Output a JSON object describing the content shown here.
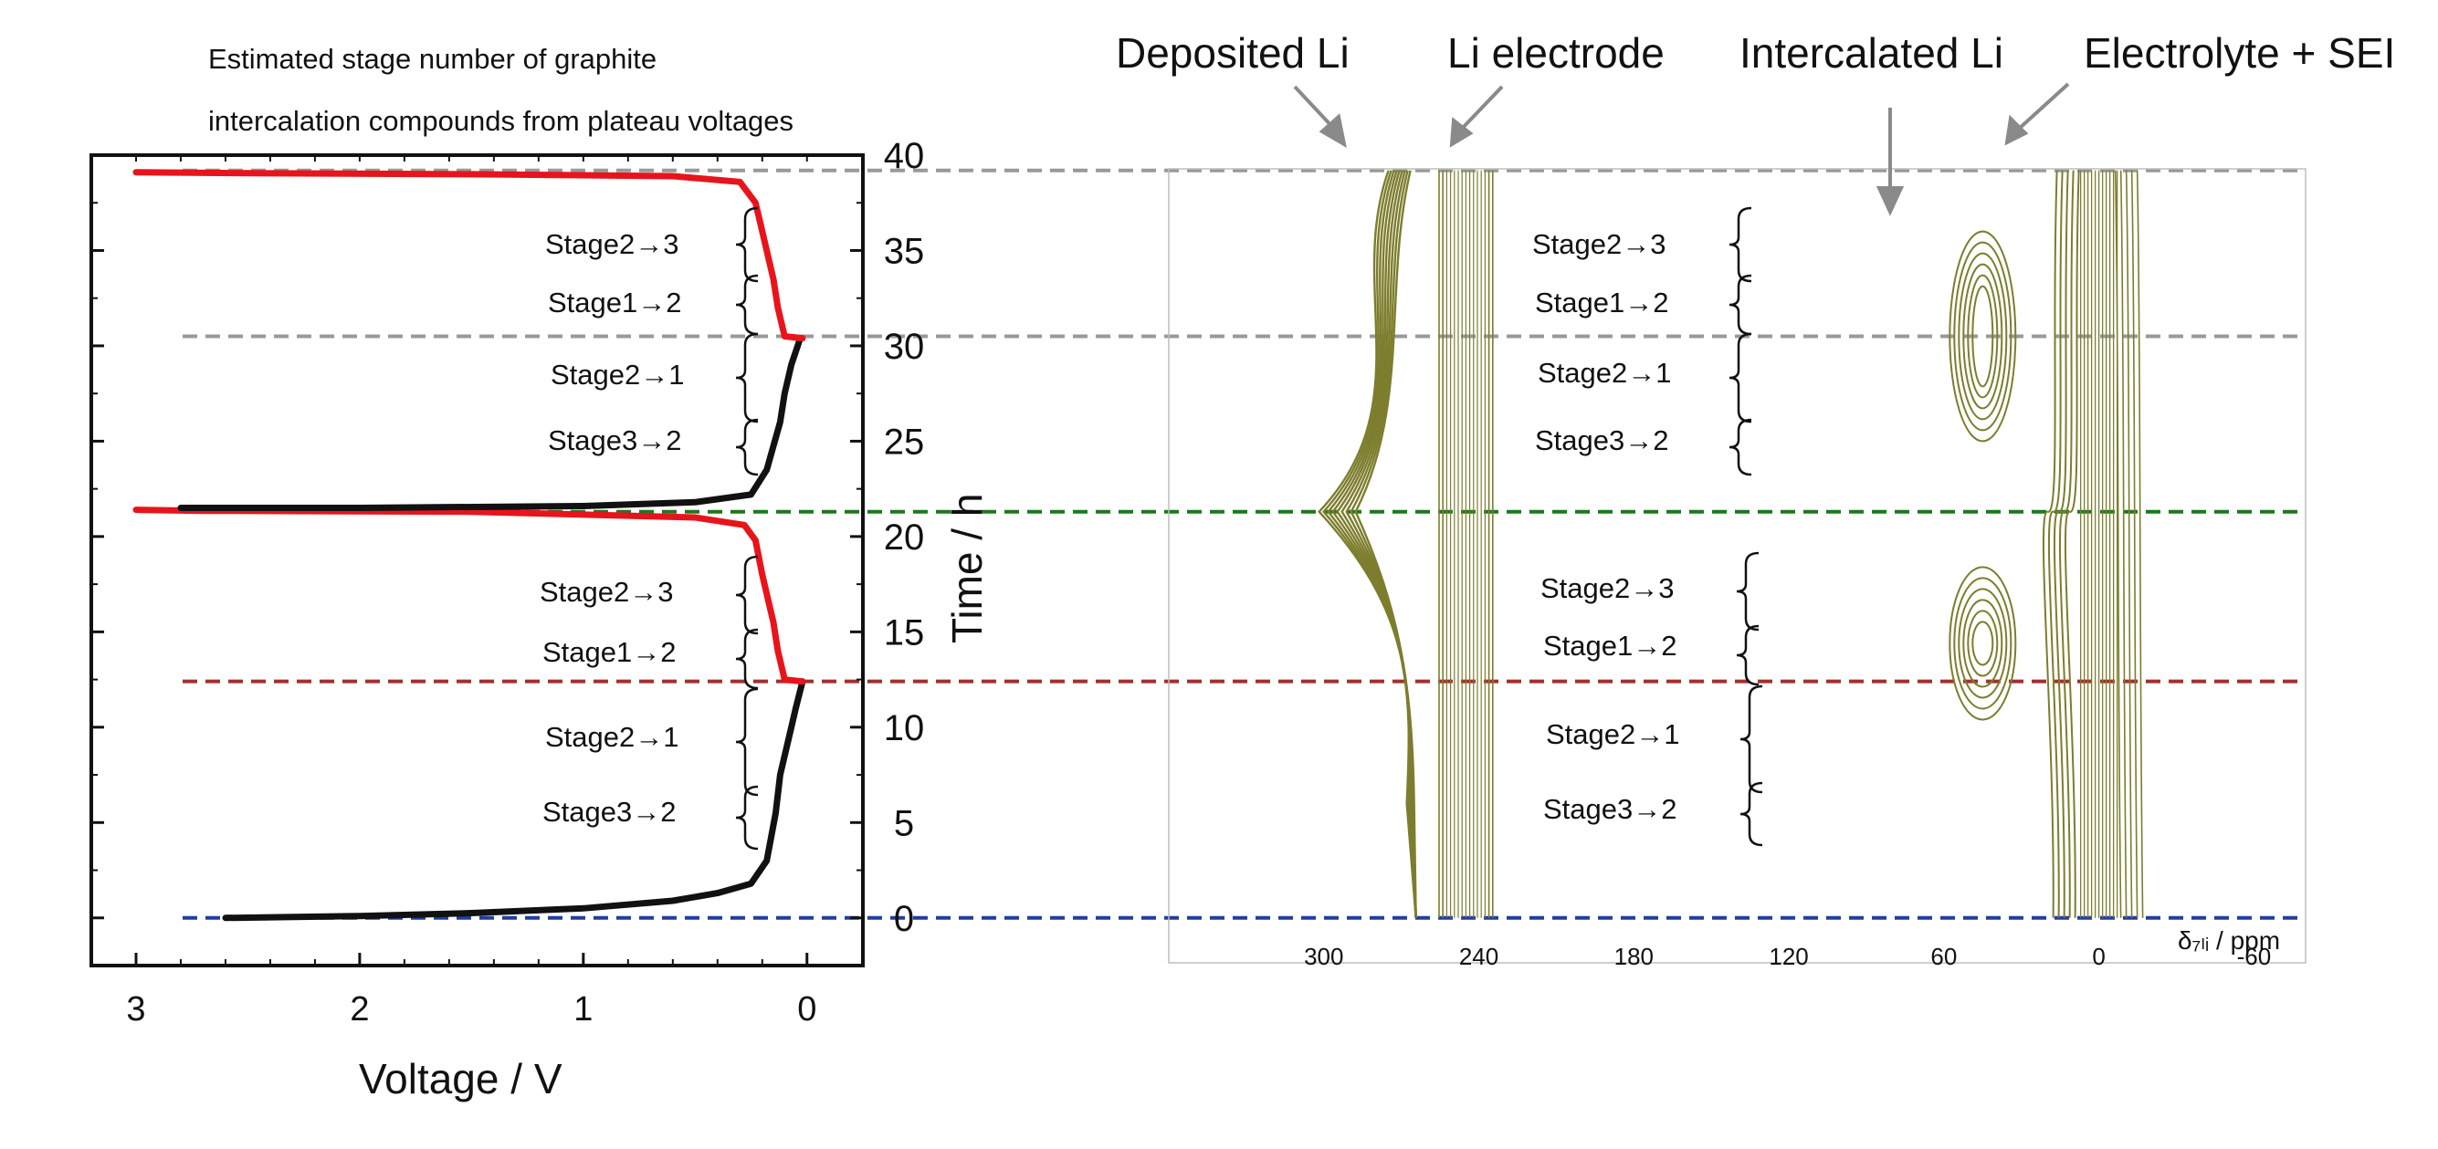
{
  "colors": {
    "charge": "#e8141b",
    "discharge": "#111111",
    "contour": "#7d7d2e",
    "guide_gray": "#999999",
    "guide_green": "#1a7a1a",
    "guide_red": "#a03030",
    "guide_blue": "#1f3f9f",
    "annotation_red": "#e8141b"
  },
  "note": {
    "line1": "Estimated stage number of graphite",
    "line2": "intercalation compounds from plateau voltages"
  },
  "annotations": {
    "deposited": "Deposited Li",
    "li_electrode": "Li electrode",
    "intercalated": "Intercalated Li",
    "electrolyte": "Electrolyte + SEI"
  },
  "stage_labels": {
    "s23": "Stage2→3",
    "s12": "Stage1→2",
    "s21": "Stage2→1",
    "s32": "Stage3→2"
  },
  "chart_data": [
    {
      "type": "line",
      "xlabel": "Voltage / V",
      "ylabel": "Time / h",
      "xlim": [
        3.2,
        -0.25
      ],
      "ylim": [
        -2.5,
        40
      ],
      "x_ticks": [
        "3",
        "2",
        "1",
        "0"
      ],
      "y_ticks": [
        "0",
        "5",
        "10",
        "15",
        "20",
        "25",
        "30",
        "35",
        "40"
      ],
      "series": [
        {
          "role": "discharge",
          "color": "#111111",
          "points": [
            [
              2.6,
              0.0
            ],
            [
              2.0,
              0.1
            ],
            [
              1.5,
              0.25
            ],
            [
              1.0,
              0.5
            ],
            [
              0.6,
              0.9
            ],
            [
              0.4,
              1.3
            ],
            [
              0.25,
              1.8
            ],
            [
              0.18,
              3.0
            ],
            [
              0.14,
              5.5
            ],
            [
              0.12,
              7.5
            ],
            [
              0.08,
              9.5
            ],
            [
              0.05,
              11.0
            ],
            [
              0.02,
              12.4
            ]
          ]
        },
        {
          "role": "charge",
          "color": "#e8141b",
          "points": [
            [
              0.02,
              12.4
            ],
            [
              0.1,
              12.5
            ],
            [
              0.13,
              14.0
            ],
            [
              0.15,
              15.5
            ],
            [
              0.17,
              16.5
            ],
            [
              0.2,
              18.0
            ],
            [
              0.23,
              19.8
            ],
            [
              0.28,
              20.6
            ],
            [
              0.5,
              21.0
            ],
            [
              1.5,
              21.3
            ],
            [
              2.7,
              21.35
            ],
            [
              3.0,
              21.4
            ]
          ]
        },
        {
          "role": "discharge",
          "color": "#111111",
          "points": [
            [
              2.8,
              21.5
            ],
            [
              2.0,
              21.5
            ],
            [
              1.0,
              21.6
            ],
            [
              0.5,
              21.8
            ],
            [
              0.25,
              22.2
            ],
            [
              0.18,
              23.5
            ],
            [
              0.12,
              26.0
            ],
            [
              0.1,
              27.5
            ],
            [
              0.07,
              29.0
            ],
            [
              0.03,
              30.4
            ]
          ]
        },
        {
          "role": "charge",
          "color": "#e8141b",
          "points": [
            [
              0.02,
              30.4
            ],
            [
              0.1,
              30.5
            ],
            [
              0.13,
              32.0
            ],
            [
              0.15,
              33.5
            ],
            [
              0.17,
              34.5
            ],
            [
              0.2,
              36.0
            ],
            [
              0.23,
              37.5
            ],
            [
              0.3,
              38.6
            ],
            [
              0.6,
              38.9
            ],
            [
              1.5,
              39.0
            ],
            [
              2.5,
              39.05
            ],
            [
              3.0,
              39.1
            ]
          ]
        }
      ],
      "reference_lines": [
        {
          "y": 39.2,
          "color": "#999999"
        },
        {
          "y": 30.5,
          "color": "#999999"
        },
        {
          "y": 21.3,
          "color": "#1a7a1a"
        },
        {
          "y": 12.4,
          "color": "#a03030"
        },
        {
          "y": 0.0,
          "color": "#1f3f9f"
        }
      ]
    },
    {
      "type": "contour",
      "xlabel": "δ₇ₗᵢ / ppm",
      "xlim": [
        360,
        -80
      ],
      "x_ticks": [
        "300",
        "240",
        "180",
        "120",
        "60",
        "0",
        "-60"
      ],
      "peaks": [
        {
          "name": "Deposited Li",
          "center_ppm": 270,
          "time_range": [
            0,
            39
          ]
        },
        {
          "name": "Li electrode",
          "center_ppm": 245,
          "time_range": [
            0,
            39
          ]
        },
        {
          "name": "Intercalated Li",
          "center_ppm": 45,
          "time_range": [
            [
              12,
              17
            ],
            [
              25,
              35
            ]
          ]
        },
        {
          "name": "Electrolyte + SEI",
          "center_ppm": 0,
          "time_range": [
            0,
            39
          ]
        }
      ]
    }
  ]
}
